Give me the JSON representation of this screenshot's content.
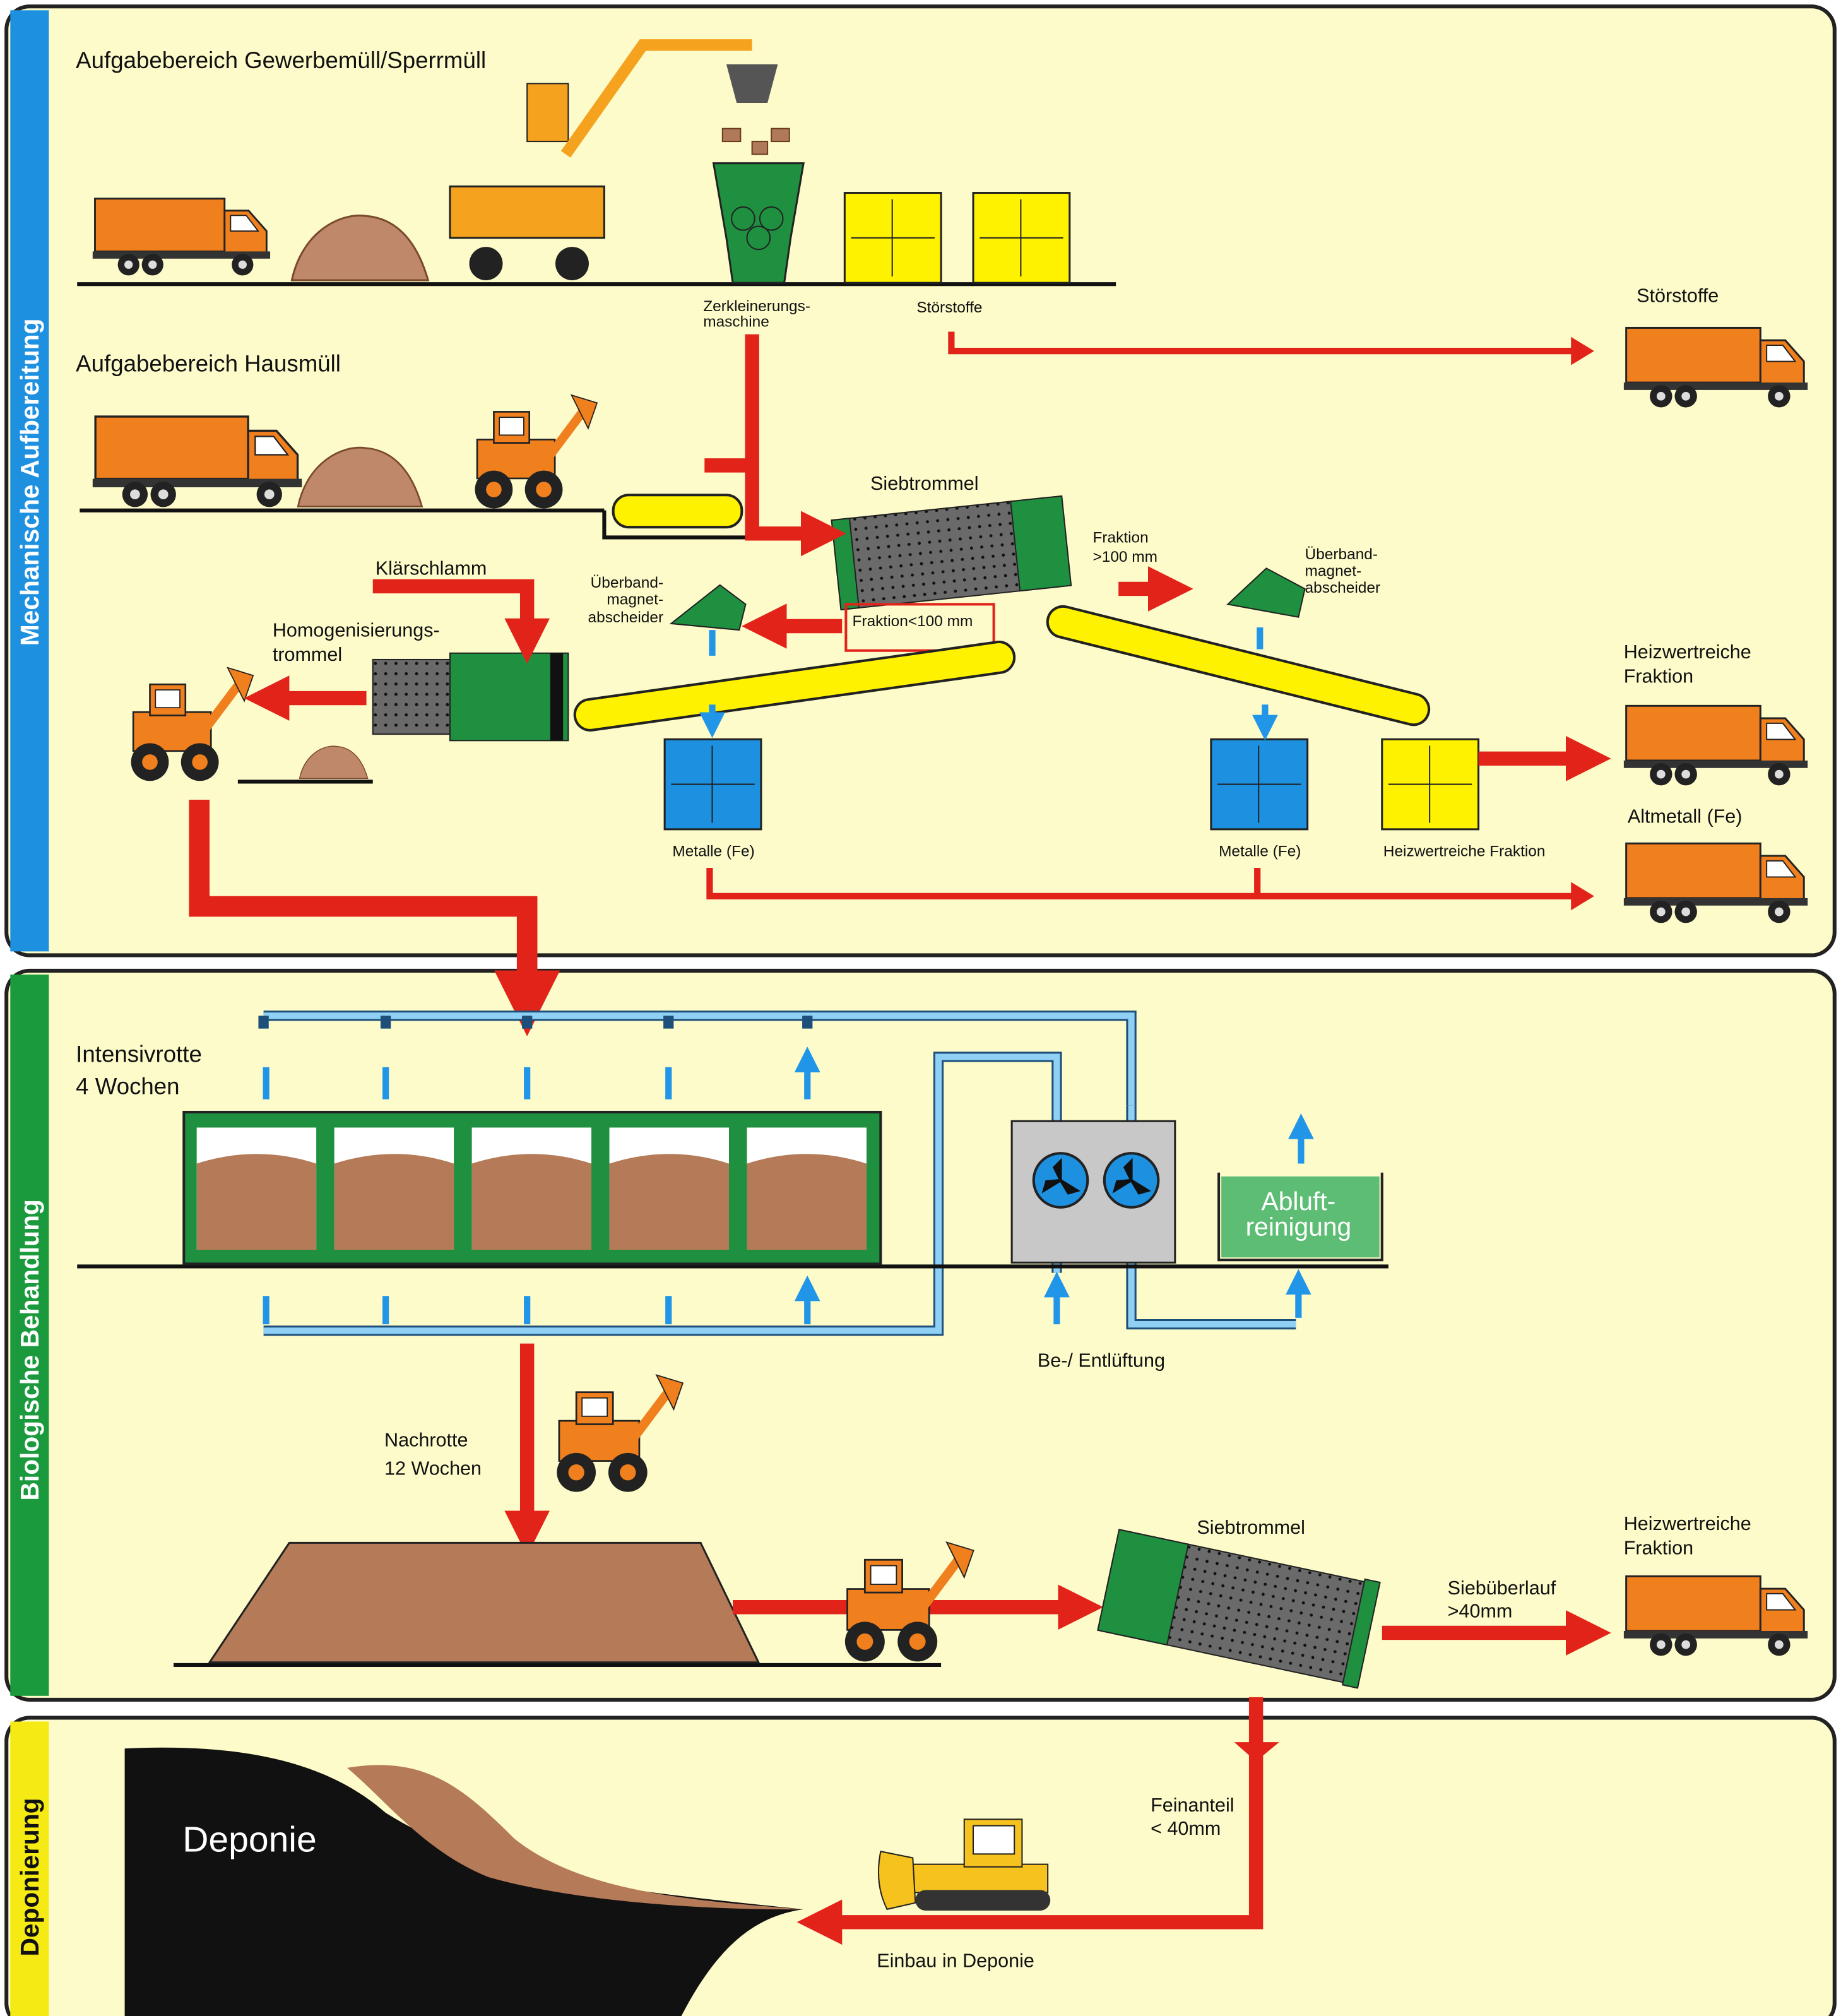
{
  "sections": [
    "Mechanische Aufbereitung",
    "Biologische Behandlung",
    "Deponierung"
  ],
  "mechanical": {
    "area_commercial": "Aufgabebereich Gewerbemüll/Sperrmüll",
    "shredder": [
      "Zerkleinerungs-",
      "maschine"
    ],
    "impurities": "Störstoffe",
    "impurities_truck": "Störstoffe",
    "area_household": "Aufgabebereich Hausmüll",
    "drum_screen": "Siebtrommel",
    "fraction_coarse": [
      "Fraktion",
      ">100 mm"
    ],
    "magnet_right": [
      "Überband-",
      "magnet-",
      "abscheider"
    ],
    "magnet_left": [
      "Überband-",
      "magnet-",
      "abscheider"
    ],
    "sludge": "Klärschlamm",
    "homogenizer": [
      "Homogenisierungs-",
      "trommel"
    ],
    "fraction_fine": "Fraktion<100 mm",
    "rdf_truck": [
      "Heizwertreiche",
      "Fraktion"
    ],
    "scrap_truck": "Altmetall (Fe)",
    "metals_left": "Metalle (Fe)",
    "metals_right": "Metalle (Fe)",
    "rdf_container": "Heizwertreiche Fraktion"
  },
  "biological": {
    "intensive": [
      "Intensivrotte",
      "4 Wochen"
    ],
    "exhaust_cleaning": [
      "Abluft-",
      "reinigung"
    ],
    "ventilation": "Be-/ Entlüftung",
    "post_rotting": [
      "Nachrotte",
      "12 Wochen"
    ],
    "drum_screen": "Siebtrommel",
    "rdf_truck": [
      "Heizwertreiche",
      "Fraktion"
    ],
    "oversize": [
      "Siebüberlauf",
      ">40mm"
    ]
  },
  "landfill": {
    "landfill": "Deponie",
    "fines": [
      "Feinanteil",
      "< 40mm"
    ],
    "placement": "Einbau in Deponie"
  }
}
